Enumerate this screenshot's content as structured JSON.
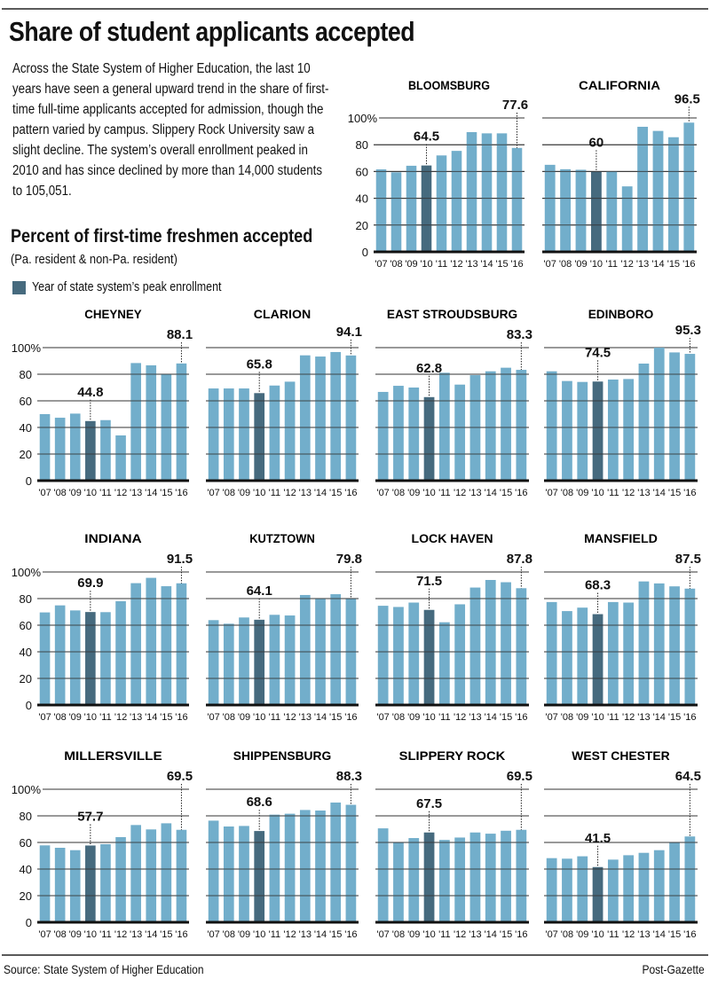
{
  "header": {
    "title": "Share of student applicants accepted",
    "intro": "Across the State System of Higher Education, the last 10 years have seen a general upward trend in the share of first-time full-time applicants accepted for admission, though the pattern varied by campus. Slippery Rock University saw a slight decline. The system’s overall enrollment peaked in 2010 and has since declined by more than 14,000 students to 105,051.",
    "subtitle": "Percent of first-time freshmen accepted",
    "subnote": "(Pa. resident & non-Pa. resident)"
  },
  "legend": {
    "label": "Year of state system’s peak enrollment",
    "color": "#466a7e"
  },
  "colors": {
    "bar": "#72aecb",
    "peak_bar": "#466a7e",
    "grid": "#333333",
    "baseline": "#111111"
  },
  "footer": {
    "source": "Source: State System of Higher Education",
    "credit": "Post-Gazette"
  },
  "chart_data": [
    {
      "type": "bar",
      "title": "BLOOMSBURG",
      "categories": [
        "'07",
        "'08",
        "'09",
        "'10",
        "'11",
        "'12",
        "'13",
        "'14",
        "'15",
        "'16"
      ],
      "values": [
        61.6,
        59.4,
        64.3,
        64.5,
        72.0,
        75.4,
        89.4,
        88.5,
        88.5,
        77.6
      ],
      "highlight_index": 3,
      "labeled": [
        {
          "index": 3,
          "text": "64.5"
        },
        {
          "index": 9,
          "text": "77.6"
        }
      ],
      "ylim": [
        0,
        100
      ],
      "yticks": [
        "0",
        "20",
        "40",
        "60",
        "80",
        "100%"
      ],
      "show_yaxis": true
    },
    {
      "type": "bar",
      "title": "CALIFORNIA",
      "categories": [
        "'07",
        "'08",
        "'09",
        "'10",
        "'11",
        "'12",
        "'13",
        "'14",
        "'15",
        "'16"
      ],
      "values": [
        65.0,
        61.7,
        61.3,
        60.0,
        60.2,
        48.9,
        93.4,
        90.3,
        85.6,
        96.5
      ],
      "highlight_index": 3,
      "labeled": [
        {
          "index": 3,
          "text": "60"
        },
        {
          "index": 9,
          "text": "96.5"
        }
      ],
      "ylim": [
        0,
        100
      ],
      "yticks": [],
      "show_yaxis": false
    },
    {
      "type": "bar",
      "title": "CHEYNEY",
      "categories": [
        "'07",
        "'08",
        "'09",
        "'10",
        "'11",
        "'12",
        "'13",
        "'14",
        "'15",
        "'16"
      ],
      "values": [
        50.0,
        47.3,
        50.4,
        44.8,
        45.5,
        34.0,
        88.4,
        86.7,
        80.0,
        88.1
      ],
      "highlight_index": 3,
      "labeled": [
        {
          "index": 3,
          "text": "44.8"
        },
        {
          "index": 9,
          "text": "88.1"
        }
      ],
      "ylim": [
        0,
        100
      ],
      "yticks": [
        "0",
        "20",
        "40",
        "60",
        "80",
        "100%"
      ],
      "show_yaxis": true
    },
    {
      "type": "bar",
      "title": "CLARION",
      "categories": [
        "'07",
        "'08",
        "'09",
        "'10",
        "'11",
        "'12",
        "'13",
        "'14",
        "'15",
        "'16"
      ],
      "values": [
        69.3,
        69.3,
        69.3,
        65.8,
        71.5,
        74.4,
        94.2,
        93.3,
        96.7,
        94.1
      ],
      "highlight_index": 3,
      "labeled": [
        {
          "index": 3,
          "text": "65.8"
        },
        {
          "index": 9,
          "text": "94.1"
        }
      ],
      "ylim": [
        0,
        100
      ],
      "yticks": [],
      "show_yaxis": false
    },
    {
      "type": "bar",
      "title": "EAST STROUDSBURG",
      "categories": [
        "'07",
        "'08",
        "'09",
        "'10",
        "'11",
        "'12",
        "'13",
        "'14",
        "'15",
        "'16"
      ],
      "values": [
        66.7,
        71.3,
        70.0,
        62.8,
        81.1,
        72.2,
        79.3,
        82.2,
        84.9,
        83.3
      ],
      "highlight_index": 3,
      "labeled": [
        {
          "index": 3,
          "text": "62.8"
        },
        {
          "index": 9,
          "text": "83.3"
        }
      ],
      "ylim": [
        0,
        100
      ],
      "yticks": [],
      "show_yaxis": false
    },
    {
      "type": "bar",
      "title": "EDINBORO",
      "categories": [
        "'07",
        "'08",
        "'09",
        "'10",
        "'11",
        "'12",
        "'13",
        "'14",
        "'15",
        "'16"
      ],
      "values": [
        82.2,
        74.9,
        74.2,
        74.5,
        76.0,
        76.4,
        88.0,
        100.0,
        96.4,
        95.3
      ],
      "highlight_index": 3,
      "labeled": [
        {
          "index": 3,
          "text": "74.5"
        },
        {
          "index": 9,
          "text": "95.3"
        }
      ],
      "ylim": [
        0,
        100
      ],
      "yticks": [],
      "show_yaxis": false
    },
    {
      "type": "bar",
      "title": "INDIANA",
      "categories": [
        "'07",
        "'08",
        "'09",
        "'10",
        "'11",
        "'12",
        "'13",
        "'14",
        "'15",
        "'16"
      ],
      "values": [
        69.6,
        74.9,
        71.1,
        69.9,
        69.8,
        78.0,
        91.6,
        95.6,
        89.3,
        91.5
      ],
      "highlight_index": 3,
      "labeled": [
        {
          "index": 3,
          "text": "69.9"
        },
        {
          "index": 9,
          "text": "91.5"
        }
      ],
      "ylim": [
        0,
        100
      ],
      "yticks": [
        "0",
        "20",
        "40",
        "60",
        "80",
        "100%"
      ],
      "show_yaxis": true
    },
    {
      "type": "bar",
      "title": "KUTZTOWN",
      "categories": [
        "'07",
        "'08",
        "'09",
        "'10",
        "'11",
        "'12",
        "'13",
        "'14",
        "'15",
        "'16"
      ],
      "values": [
        63.8,
        61.1,
        65.8,
        64.1,
        67.8,
        67.3,
        82.7,
        80.0,
        83.3,
        79.8
      ],
      "highlight_index": 3,
      "labeled": [
        {
          "index": 3,
          "text": "64.1"
        },
        {
          "index": 9,
          "text": "79.8"
        }
      ],
      "ylim": [
        0,
        100
      ],
      "yticks": [],
      "show_yaxis": false
    },
    {
      "type": "bar",
      "title": "LOCK HAVEN",
      "categories": [
        "'07",
        "'08",
        "'09",
        "'10",
        "'11",
        "'12",
        "'13",
        "'14",
        "'15",
        "'16"
      ],
      "values": [
        74.6,
        73.7,
        77.0,
        71.5,
        62.2,
        75.7,
        88.3,
        94.0,
        92.3,
        87.8
      ],
      "highlight_index": 3,
      "labeled": [
        {
          "index": 3,
          "text": "71.5"
        },
        {
          "index": 9,
          "text": "87.8"
        }
      ],
      "ylim": [
        0,
        100
      ],
      "yticks": [],
      "show_yaxis": false
    },
    {
      "type": "bar",
      "title": "MANSFIELD",
      "categories": [
        "'07",
        "'08",
        "'09",
        "'10",
        "'11",
        "'12",
        "'13",
        "'14",
        "'15",
        "'16"
      ],
      "values": [
        77.4,
        70.6,
        73.2,
        68.3,
        77.4,
        77.0,
        92.9,
        91.4,
        89.2,
        87.5
      ],
      "highlight_index": 3,
      "labeled": [
        {
          "index": 3,
          "text": "68.3"
        },
        {
          "index": 9,
          "text": "87.5"
        }
      ],
      "ylim": [
        0,
        100
      ],
      "yticks": [],
      "show_yaxis": false
    },
    {
      "type": "bar",
      "title": "MILLERSVILLE",
      "categories": [
        "'07",
        "'08",
        "'09",
        "'10",
        "'11",
        "'12",
        "'13",
        "'14",
        "'15",
        "'16"
      ],
      "values": [
        57.8,
        56.0,
        54.2,
        57.7,
        58.7,
        64.0,
        73.1,
        69.8,
        74.4,
        69.5
      ],
      "highlight_index": 3,
      "labeled": [
        {
          "index": 3,
          "text": "57.7"
        },
        {
          "index": 9,
          "text": "69.5"
        }
      ],
      "ylim": [
        0,
        100
      ],
      "yticks": [
        "0",
        "20",
        "40",
        "60",
        "80",
        "100%"
      ],
      "show_yaxis": true
    },
    {
      "type": "bar",
      "title": "SHIPPENSBURG",
      "categories": [
        "'07",
        "'08",
        "'09",
        "'10",
        "'11",
        "'12",
        "'13",
        "'14",
        "'15",
        "'16"
      ],
      "values": [
        76.4,
        72.0,
        72.4,
        68.6,
        80.9,
        81.6,
        84.4,
        84.0,
        90.0,
        88.3
      ],
      "highlight_index": 3,
      "labeled": [
        {
          "index": 3,
          "text": "68.6"
        },
        {
          "index": 9,
          "text": "88.3"
        }
      ],
      "ylim": [
        0,
        100
      ],
      "yticks": [],
      "show_yaxis": false
    },
    {
      "type": "bar",
      "title": "SLIPPERY ROCK",
      "categories": [
        "'07",
        "'08",
        "'09",
        "'10",
        "'11",
        "'12",
        "'13",
        "'14",
        "'15",
        "'16"
      ],
      "values": [
        70.6,
        59.7,
        63.3,
        67.5,
        61.9,
        63.7,
        67.5,
        66.6,
        68.8,
        69.5
      ],
      "highlight_index": 3,
      "labeled": [
        {
          "index": 3,
          "text": "67.5"
        },
        {
          "index": 9,
          "text": "69.5"
        }
      ],
      "ylim": [
        0,
        100
      ],
      "yticks": [],
      "show_yaxis": false
    },
    {
      "type": "bar",
      "title": "WEST CHESTER",
      "categories": [
        "'07",
        "'08",
        "'09",
        "'10",
        "'11",
        "'12",
        "'13",
        "'14",
        "'15",
        "'16"
      ],
      "values": [
        48.2,
        47.8,
        49.6,
        41.5,
        47.1,
        50.4,
        52.2,
        54.2,
        59.7,
        64.5
      ],
      "highlight_index": 3,
      "labeled": [
        {
          "index": 3,
          "text": "41.5"
        },
        {
          "index": 9,
          "text": "64.5"
        }
      ],
      "ylim": [
        0,
        100
      ],
      "yticks": [],
      "show_yaxis": false
    }
  ]
}
